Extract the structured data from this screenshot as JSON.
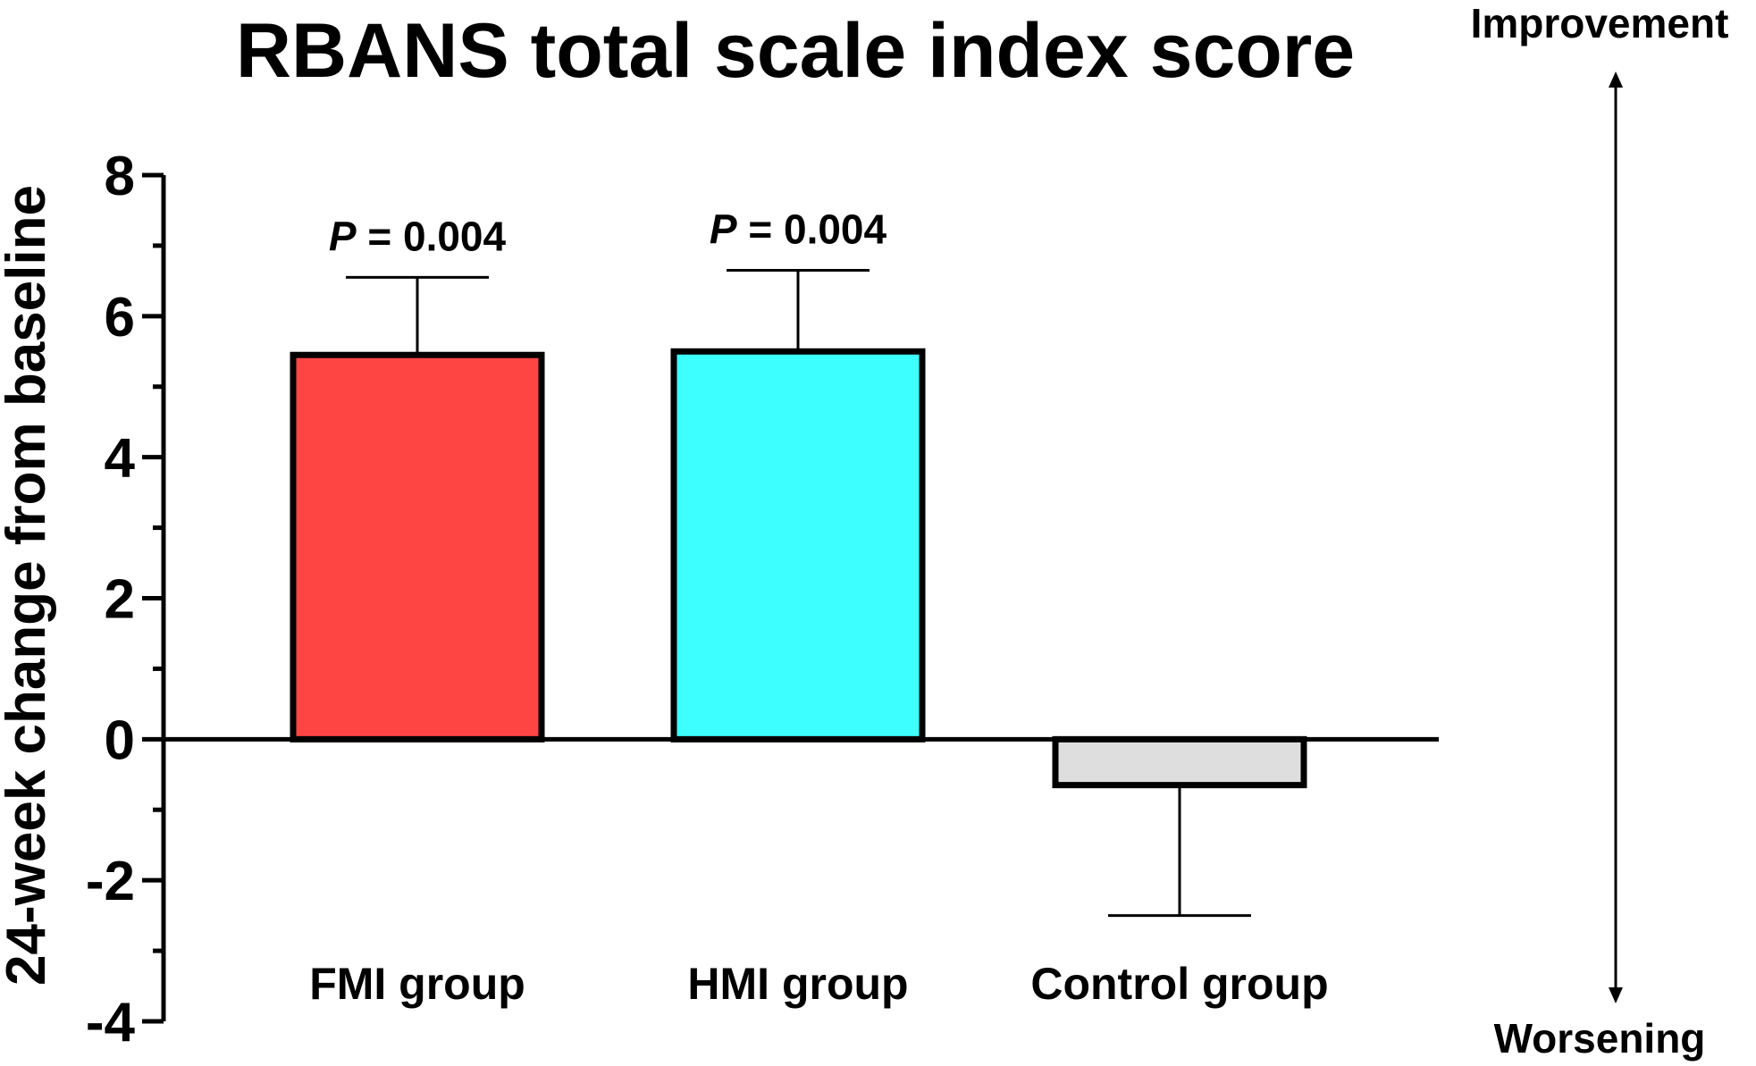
{
  "chart_data": {
    "type": "bar",
    "title": "RBANS total scale index score",
    "ylabel": "24-week change from baseline",
    "xlabel": "",
    "ylim": [
      -4,
      8
    ],
    "yticks": [
      -4,
      -2,
      0,
      2,
      4,
      6,
      8
    ],
    "ytick_labels": [
      "-4",
      "-2",
      "0",
      "2",
      "4",
      "6",
      "8"
    ],
    "categories": [
      "FMI group",
      "HMI group",
      "Control group"
    ],
    "values": [
      5.45,
      5.5,
      -0.65
    ],
    "error_upper": [
      6.55,
      6.65,
      -2.5
    ],
    "bar_colors": [
      "#ff4444",
      "#3dffff",
      "#dedede"
    ],
    "annotations": [
      {
        "category": "FMI group",
        "p_label": "P",
        "text": " = 0.004"
      },
      {
        "category": "HMI group",
        "p_label": "P",
        "text": " = 0.004"
      }
    ],
    "grid": false,
    "direction_labels": {
      "top": "Improvement",
      "bottom": "Worsening"
    }
  }
}
